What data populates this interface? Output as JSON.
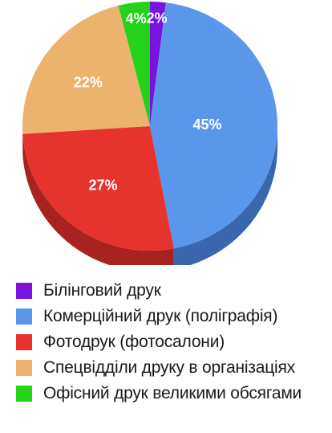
{
  "chart_data": {
    "type": "pie",
    "categories": [
      "Білінговий друк",
      "Комерційний друк (поліграфія)",
      "Фотодрук (фотосалони)",
      "Спецвідділи друку в організаціях",
      "Офісний друк великими обсягами"
    ],
    "values": [
      2,
      45,
      27,
      22,
      4
    ],
    "labels": [
      "2%",
      "45%",
      "27%",
      "22%",
      "4%"
    ],
    "colors": [
      "#7a13dd",
      "#5a96ea",
      "#e7332d",
      "#ecb36e",
      "#22d31a"
    ],
    "side_colors": [
      "#4f0b94",
      "#3a66ad",
      "#a82320",
      "#b8864e",
      "#179a12"
    ],
    "legend_position": "bottom",
    "title": ""
  }
}
